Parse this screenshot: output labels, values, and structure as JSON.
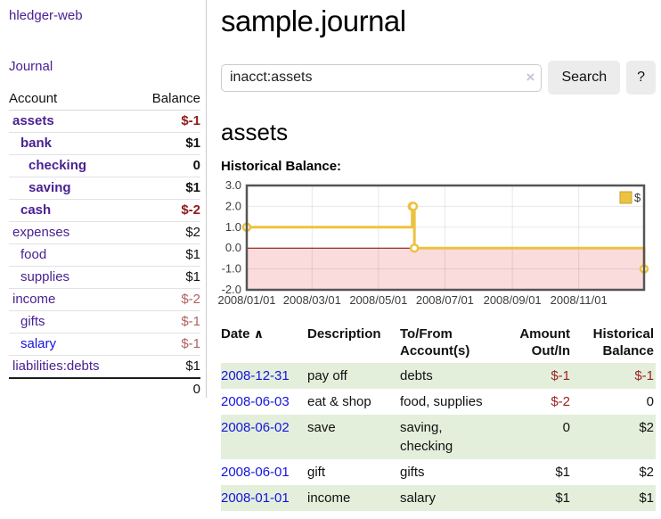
{
  "app": {
    "brand": "hledger-web",
    "nav": {
      "journal": "Journal"
    }
  },
  "sidebar": {
    "headers": {
      "account": "Account",
      "balance": "Balance"
    },
    "rows": [
      {
        "account": "assets",
        "balance": "$-1",
        "level": 1,
        "bold": true,
        "negative": true,
        "blue": false
      },
      {
        "account": "bank",
        "balance": "$1",
        "level": 2,
        "bold": true,
        "negative": false,
        "blue": false
      },
      {
        "account": "checking",
        "balance": "0",
        "level": 3,
        "bold": true,
        "negative": false,
        "blue": false
      },
      {
        "account": "saving",
        "balance": "$1",
        "level": 3,
        "bold": true,
        "negative": false,
        "blue": false
      },
      {
        "account": "cash",
        "balance": "$-2",
        "level": 2,
        "bold": true,
        "negative": true,
        "blue": false
      },
      {
        "account": "expenses",
        "balance": "$2",
        "level": 1,
        "bold": false,
        "negative": false,
        "blue": false
      },
      {
        "account": "food",
        "balance": "$1",
        "level": 2,
        "bold": false,
        "negative": false,
        "blue": false
      },
      {
        "account": "supplies",
        "balance": "$1",
        "level": 2,
        "bold": false,
        "negative": false,
        "blue": false
      },
      {
        "account": "income",
        "balance": "$-2",
        "level": 1,
        "bold": false,
        "negative": true,
        "blue": false
      },
      {
        "account": "gifts",
        "balance": "$-1",
        "level": 2,
        "bold": false,
        "negative": true,
        "blue": false
      },
      {
        "account": "salary",
        "balance": "$-1",
        "level": 2,
        "bold": false,
        "negative": true,
        "blue": true
      },
      {
        "account": "liabilities:debts",
        "balance": "$1",
        "level": 1,
        "bold": false,
        "negative": false,
        "blue": false
      }
    ],
    "total": "0"
  },
  "header": {
    "title": "sample.journal"
  },
  "search": {
    "value": "inacct:assets",
    "clear_icon": "×",
    "button_label": "Search",
    "help_label": "?"
  },
  "account_page": {
    "title": "assets",
    "chart_heading": "Historical Balance:"
  },
  "chart_data": {
    "type": "line",
    "steps": true,
    "title": "Historical Balance:",
    "x_start": "2008-01-01",
    "x_end": "2008-12-31",
    "x_ticks": [
      "2008/01/01",
      "2008/03/01",
      "2008/05/01",
      "2008/07/01",
      "2008/09/01",
      "2008/11/01"
    ],
    "y_ticks": [
      3.0,
      2.0,
      1.0,
      0.0,
      -1.0,
      -2.0
    ],
    "ylim": [
      -2,
      3
    ],
    "grid": true,
    "legend_position": "top-right",
    "series": [
      {
        "name": "$",
        "color": "#edc240",
        "points": [
          [
            "2008-01-01",
            1
          ],
          [
            "2008-06-01",
            2
          ],
          [
            "2008-06-02",
            2
          ],
          [
            "2008-06-03",
            0
          ],
          [
            "2008-12-31",
            -1
          ]
        ]
      }
    ],
    "negative_region_color": "#fbdcdc",
    "zero_line_color": "#8b0000",
    "grid_color": "rgba(0,0,0,0.09)",
    "border_color": "#555555"
  },
  "register": {
    "columns": [
      {
        "label": "Date"
      },
      {
        "label": "Description"
      },
      {
        "label": "To/From Account(s)"
      },
      {
        "label": "Amount Out/In"
      },
      {
        "label": "Historical Balance"
      }
    ],
    "sort_indicator": "∧",
    "rows": [
      {
        "date": "2008-12-31",
        "description": "pay off",
        "accounts": [
          "debts"
        ],
        "amount": "$-1",
        "amount_negative": true,
        "balance": "$-1",
        "balance_negative": true
      },
      {
        "date": "2008-06-03",
        "description": "eat & shop",
        "accounts": [
          "food, supplies"
        ],
        "amount": "$-2",
        "amount_negative": true,
        "balance": "0",
        "balance_negative": false
      },
      {
        "date": "2008-06-02",
        "description": "save",
        "accounts": [
          "saving,",
          "checking"
        ],
        "amount": "0",
        "amount_negative": false,
        "balance": "$2",
        "balance_negative": false
      },
      {
        "date": "2008-06-01",
        "description": "gift",
        "accounts": [
          "gifts"
        ],
        "amount": "$1",
        "amount_negative": false,
        "balance": "$2",
        "balance_negative": false
      },
      {
        "date": "2008-01-01",
        "description": "income",
        "accounts": [
          "salary"
        ],
        "amount": "$1",
        "amount_negative": false,
        "balance": "$1",
        "balance_negative": false
      }
    ]
  },
  "colors": {
    "link_purple": "#4a2192",
    "link_blue": "#1414dd",
    "negative_strong": "#8f1a1a",
    "negative_soft": "#b06060",
    "table_negative": "#9b2222",
    "row_stripe_green": "#e3efdb",
    "series_gold": "#edc240",
    "negative_region_pink": "#fbdcdc",
    "zero_line_red": "#8b0000"
  }
}
